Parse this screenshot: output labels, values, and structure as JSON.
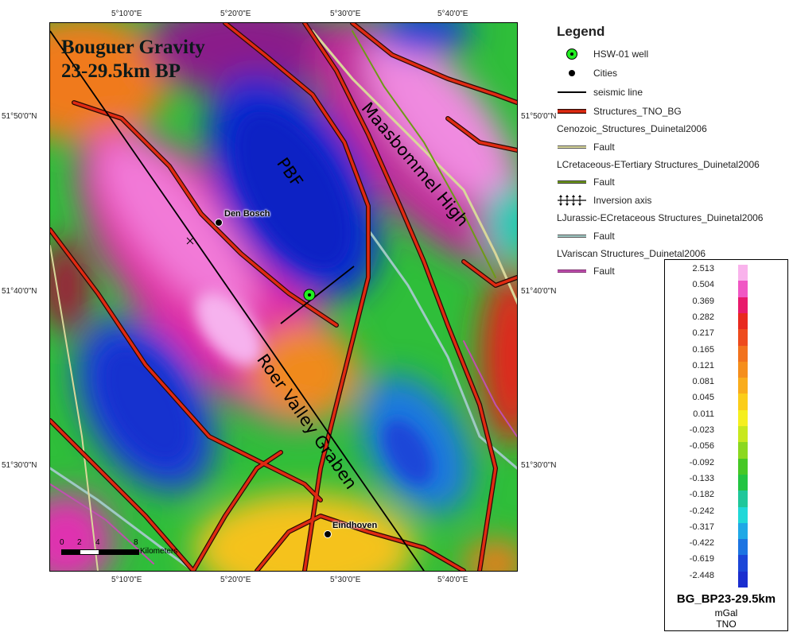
{
  "map": {
    "title_lines": [
      "Bouguer Gravity",
      "23-29.5km BP"
    ],
    "labels": {
      "maasbommel_high": "Maasbommel High",
      "pbf": "PBF",
      "roer_valley_graben": "Roer Valley Graben"
    },
    "cities": [
      {
        "name": "Den Bosch"
      },
      {
        "name": "Eindhoven"
      }
    ],
    "scale_bar": {
      "ticks": [
        "0",
        "2",
        "4",
        "8"
      ],
      "unit": "Kilometers"
    },
    "top_ticks": [
      "5°10'0\"E",
      "5°20'0\"E",
      "5°30'0\"E",
      "5°40'0\"E"
    ],
    "bottom_ticks": [
      "5°10'0\"E",
      "5°20'0\"E",
      "5°30'0\"E",
      "5°40'0\"E"
    ],
    "left_ticks": [
      "51°50'0\"N",
      "51°40'0\"N",
      "51°30'0\"N"
    ],
    "right_ticks": [
      "51°50'0\"N",
      "51°40'0\"N",
      "51°30'0\"N"
    ]
  },
  "legend": {
    "title": "Legend",
    "items": [
      {
        "label": "HSW-01 well",
        "symbol": "well-icon"
      },
      {
        "label": "Cities",
        "symbol": "city-dot"
      },
      {
        "label": "seismic line",
        "symbol": "black-line"
      },
      {
        "label": "Structures_TNO_BG",
        "symbol": "red-line"
      },
      {
        "label": "Cenozoic_Structures_Duinetal2006",
        "symbol": "none"
      },
      {
        "label": "Fault",
        "symbol": "khaki-fault"
      },
      {
        "label": "LCretaceous-ETertiary Structures_Duinetal2006",
        "symbol": "none"
      },
      {
        "label": "Fault",
        "symbol": "olive-fault"
      },
      {
        "label": "Inversion axis",
        "symbol": "inversion-axis-icon"
      },
      {
        "label": "LJurassic-ECretaceous Structures_Duinetal2006",
        "symbol": "none"
      },
      {
        "label": "Fault",
        "symbol": "teal-fault"
      },
      {
        "label": "LVariscan Structures_Duinetal2006",
        "symbol": "none"
      },
      {
        "label": "Fault",
        "symbol": "magenta-fault"
      }
    ]
  },
  "colorbar": {
    "values": [
      "2.513",
      "0.504",
      "0.369",
      "0.282",
      "0.217",
      "0.165",
      "0.121",
      "0.081",
      "0.045",
      "0.011",
      "-0.023",
      "-0.056",
      "-0.092",
      "-0.133",
      "-0.182",
      "-0.242",
      "-0.317",
      "-0.422",
      "-0.619",
      "-2.448"
    ],
    "colors": [
      "#f9b3ec",
      "#f057c4",
      "#e81a6c",
      "#e8291f",
      "#ee4b1d",
      "#f2721d",
      "#f58e1c",
      "#f9ac1c",
      "#fbcd1a",
      "#f5ef1f",
      "#c8e81e",
      "#8bd81f",
      "#46c825",
      "#22c442",
      "#1fc79a",
      "#20d8d8",
      "#1fa8e6",
      "#1c74e2",
      "#1b46d8",
      "#1a2ecf"
    ],
    "title": "BG_BP23-29.5km",
    "unit": "mGal",
    "source": "TNO"
  },
  "colors": {
    "structure_red": "#e02a12",
    "khaki_fault": "#d9d79a",
    "olive_fault": "#6e9a18",
    "teal_fault": "#9fc9c4",
    "magenta_fault": "#c050b0",
    "well_green": "#22ee22"
  }
}
